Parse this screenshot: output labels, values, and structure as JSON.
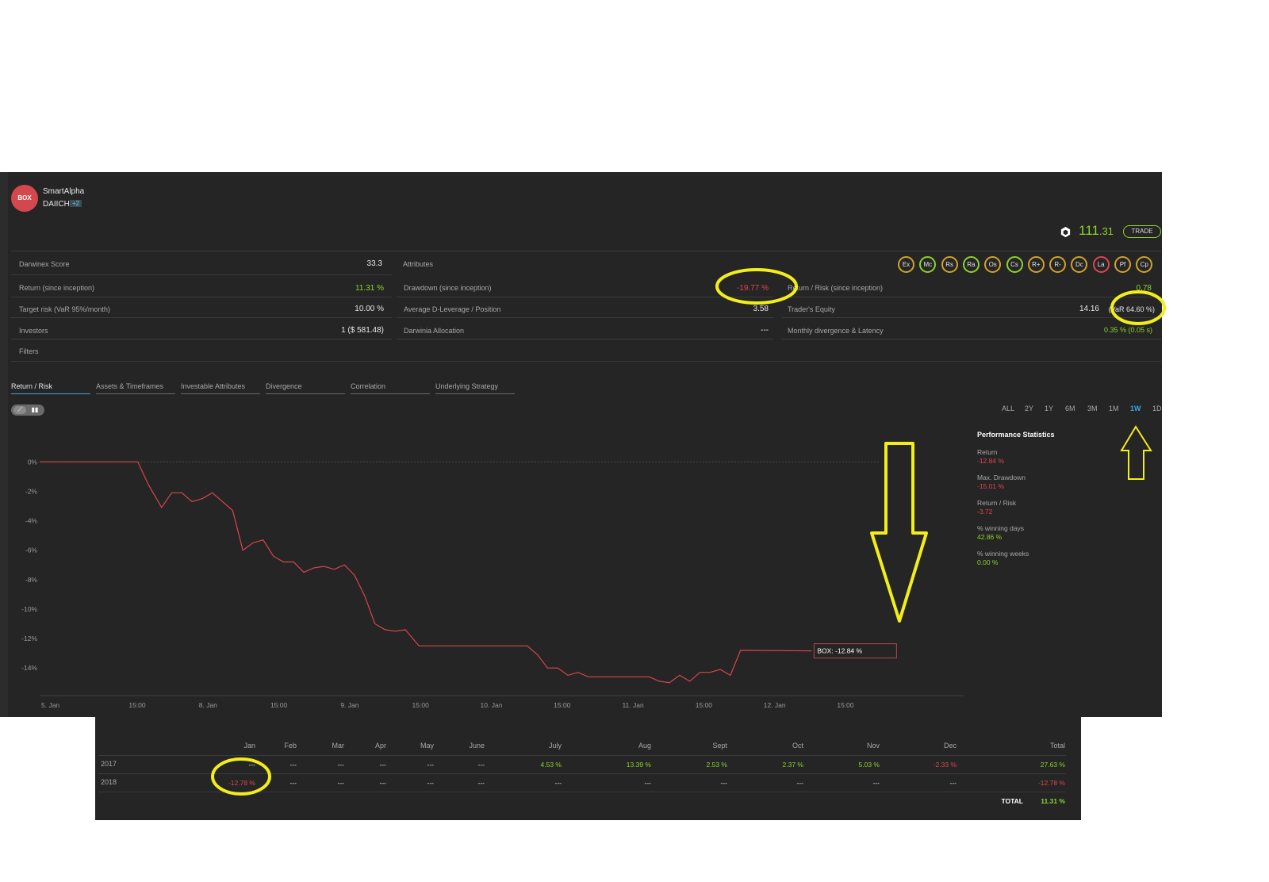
{
  "header": {
    "avatar_text": "BOX",
    "strategy_name": "SmartAlpha",
    "trader_name": "DAIICHI",
    "plus_badge": "+2",
    "price_int": "111",
    "price_dec": ".31",
    "trade_label": "TRADE"
  },
  "metrics": {
    "darwinex_score_label": "Darwinex Score",
    "darwinex_score": "33.3",
    "return_label": "Return (since inception)",
    "return_value": "11.31 %",
    "target_risk_label": "Target risk (VaR 95%/month)",
    "target_risk_value": "10.00 %",
    "investors_label": "Investors",
    "investors_value": "1 ($ 581.48)",
    "filters_label": "Filters",
    "attributes_label": "Attributes",
    "drawdown_label": "Drawdown (since inception)",
    "drawdown_value": "-19.77 %",
    "leverage_label": "Average D-Leverage / Position",
    "leverage_value": "3.58",
    "allocation_label": "Darwinia Allocation",
    "allocation_value": "---",
    "return_risk_label": "Return / Risk (since inception)",
    "return_risk_value": "0.78",
    "equity_label": "Trader's Equity",
    "equity_value": "14.16",
    "equity_var": "(VaR 64.60 %)",
    "divergence_label": "Monthly divergence & Latency",
    "divergence_value": "0.35 % (0.05 s)"
  },
  "attribute_badges": [
    {
      "label": "Ex",
      "color": "#d2a329"
    },
    {
      "label": "Mc",
      "color": "#8bd42a"
    },
    {
      "label": "Rs",
      "color": "#d2a329"
    },
    {
      "label": "Ra",
      "color": "#8bd42a"
    },
    {
      "label": "Os",
      "color": "#d2a329"
    },
    {
      "label": "Cs",
      "color": "#8bd42a"
    },
    {
      "label": "R+",
      "color": "#d2a329"
    },
    {
      "label": "R-",
      "color": "#d2a329"
    },
    {
      "label": "Dc",
      "color": "#d2a329"
    },
    {
      "label": "La",
      "color": "#e0454f"
    },
    {
      "label": "Pf",
      "color": "#d2a329"
    },
    {
      "label": "Cp",
      "color": "#d2a329"
    }
  ],
  "tabs": [
    "Return / Risk",
    "Assets & Timeframes",
    "Investable Attributes",
    "Divergence",
    "Correlation",
    "Underlying Strategy"
  ],
  "ranges": [
    "ALL",
    "2Y",
    "1Y",
    "6M",
    "3M",
    "1M",
    "1W",
    "1D"
  ],
  "active_range": "1W",
  "performance": {
    "title": "Performance Statistics",
    "items": [
      {
        "label": "Return",
        "value": "-12.84 %",
        "color": "#e0454f"
      },
      {
        "label": "Max. Drawdown",
        "value": "-15.01 %",
        "color": "#e0454f"
      },
      {
        "label": "Return / Risk",
        "value": "-3.72",
        "color": "#e0454f"
      },
      {
        "label": "% winning days",
        "value": "42.86 %",
        "color": "#8bd42a"
      },
      {
        "label": "% winning weeks",
        "value": "0.00 %",
        "color": "#8bd42a"
      }
    ]
  },
  "chart_data": {
    "type": "line",
    "series": [
      {
        "name": "BOX",
        "color": "#d9454f",
        "points": [
          [
            0,
            0
          ],
          [
            14.5,
            0
          ],
          [
            16,
            -1.5
          ],
          [
            18,
            -3.1
          ],
          [
            19.5,
            -2.1
          ],
          [
            21,
            -2.1
          ],
          [
            22.5,
            -2.7
          ],
          [
            24,
            -2.5
          ],
          [
            25.5,
            -2.1
          ],
          [
            27,
            -2.7
          ],
          [
            28.5,
            -3.3
          ],
          [
            30,
            -6.0
          ],
          [
            31.5,
            -5.5
          ],
          [
            33,
            -5.3
          ],
          [
            34.5,
            -6.4
          ],
          [
            36,
            -6.8
          ],
          [
            37.5,
            -6.8
          ],
          [
            39,
            -7.5
          ],
          [
            40.5,
            -7.2
          ],
          [
            42,
            -7.1
          ],
          [
            43.5,
            -7.3
          ],
          [
            45,
            -7.0
          ],
          [
            46.5,
            -7.7
          ],
          [
            48,
            -9.1
          ],
          [
            49.5,
            -11.0
          ],
          [
            51,
            -11.4
          ],
          [
            52.5,
            -11.5
          ],
          [
            54,
            -11.4
          ],
          [
            56,
            -12.5
          ],
          [
            70,
            -12.5
          ],
          [
            72,
            -12.5
          ],
          [
            73.5,
            -13.1
          ],
          [
            75,
            -14.0
          ],
          [
            76.5,
            -14.0
          ],
          [
            78,
            -14.5
          ],
          [
            79.5,
            -14.3
          ],
          [
            81,
            -14.6
          ],
          [
            90,
            -14.6
          ],
          [
            91.5,
            -14.9
          ],
          [
            93,
            -15.0
          ],
          [
            94.5,
            -14.5
          ],
          [
            96,
            -14.9
          ],
          [
            97.5,
            -14.3
          ],
          [
            99,
            -14.3
          ],
          [
            100.5,
            -14.1
          ],
          [
            102,
            -14.5
          ],
          [
            103.5,
            -12.8
          ],
          [
            114,
            -12.84
          ]
        ]
      }
    ],
    "x_ticks": [
      "5. Jan",
      "15:00",
      "8. Jan",
      "15:00",
      "9. Jan",
      "15:00",
      "10. Jan",
      "15:00",
      "11. Jan",
      "15:00",
      "12. Jan",
      "15:00"
    ],
    "y_ticks": [
      "0%",
      "-2%",
      "-4%",
      "-6%",
      "-8%",
      "-10%",
      "-12%",
      "-14%"
    ],
    "ylim": [
      -15.5,
      0.5
    ],
    "xlim": [
      0,
      130
    ],
    "end_label": "BOX: -12.84 %"
  },
  "monthly": {
    "headers": [
      "Jan",
      "Feb",
      "Mar",
      "Apr",
      "May",
      "June",
      "July",
      "Aug",
      "Sept",
      "Oct",
      "Nov",
      "Dec",
      "Total"
    ],
    "rows": [
      {
        "year": "2017",
        "cells": [
          {
            "v": "---",
            "c": "n"
          },
          {
            "v": "---",
            "c": "n"
          },
          {
            "v": "---",
            "c": "n"
          },
          {
            "v": "---",
            "c": "n"
          },
          {
            "v": "---",
            "c": "n"
          },
          {
            "v": "---",
            "c": "n"
          },
          {
            "v": "4.53 %",
            "c": "g"
          },
          {
            "v": "13.39 %",
            "c": "g"
          },
          {
            "v": "2.53 %",
            "c": "g"
          },
          {
            "v": "2.37 %",
            "c": "g"
          },
          {
            "v": "5.03 %",
            "c": "g"
          },
          {
            "v": "-2.33 %",
            "c": "r"
          },
          {
            "v": "27.63 %",
            "c": "g"
          }
        ]
      },
      {
        "year": "2018",
        "cells": [
          {
            "v": "-12.78 %",
            "c": "r"
          },
          {
            "v": "---",
            "c": "n"
          },
          {
            "v": "---",
            "c": "n"
          },
          {
            "v": "---",
            "c": "n"
          },
          {
            "v": "---",
            "c": "n"
          },
          {
            "v": "---",
            "c": "n"
          },
          {
            "v": "---",
            "c": "n"
          },
          {
            "v": "---",
            "c": "n"
          },
          {
            "v": "---",
            "c": "n"
          },
          {
            "v": "---",
            "c": "n"
          },
          {
            "v": "---",
            "c": "n"
          },
          {
            "v": "---",
            "c": "n"
          },
          {
            "v": "-12.78 %",
            "c": "r"
          }
        ]
      }
    ],
    "total_label": "TOTAL",
    "total_value": "11.31 %"
  }
}
